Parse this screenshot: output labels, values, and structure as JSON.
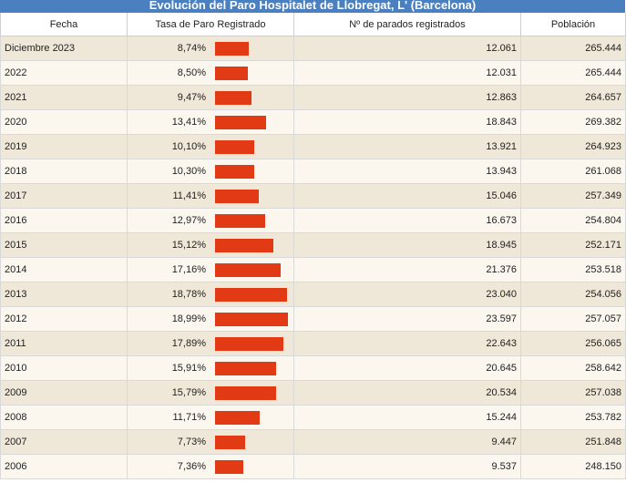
{
  "title": "Evolución del Paro Hospitalet de Llobregat, L' (Barcelona)",
  "columns": {
    "fecha": "Fecha",
    "tasa": "Tasa de Paro Registrado",
    "parados": "Nº de parados registrados",
    "poblacion": "Población"
  },
  "colors": {
    "header": "#4a7fc0",
    "bar": "#e23a14",
    "row_odd": "#efe7d8",
    "row_even": "#fbf7ef"
  },
  "bar_scale_max_percent": 18.99,
  "rows": [
    {
      "fecha": "Diciembre 2023",
      "tasa": "8,74%",
      "tasa_value": 8.74,
      "parados": "12.061",
      "poblacion": "265.444"
    },
    {
      "fecha": "2022",
      "tasa": "8,50%",
      "tasa_value": 8.5,
      "parados": "12.031",
      "poblacion": "265.444"
    },
    {
      "fecha": "2021",
      "tasa": "9,47%",
      "tasa_value": 9.47,
      "parados": "12.863",
      "poblacion": "264.657"
    },
    {
      "fecha": "2020",
      "tasa": "13,41%",
      "tasa_value": 13.41,
      "parados": "18.843",
      "poblacion": "269.382"
    },
    {
      "fecha": "2019",
      "tasa": "10,10%",
      "tasa_value": 10.1,
      "parados": "13.921",
      "poblacion": "264.923"
    },
    {
      "fecha": "2018",
      "tasa": "10,30%",
      "tasa_value": 10.3,
      "parados": "13.943",
      "poblacion": "261.068"
    },
    {
      "fecha": "2017",
      "tasa": "11,41%",
      "tasa_value": 11.41,
      "parados": "15.046",
      "poblacion": "257.349"
    },
    {
      "fecha": "2016",
      "tasa": "12,97%",
      "tasa_value": 12.97,
      "parados": "16.673",
      "poblacion": "254.804"
    },
    {
      "fecha": "2015",
      "tasa": "15,12%",
      "tasa_value": 15.12,
      "parados": "18.945",
      "poblacion": "252.171"
    },
    {
      "fecha": "2014",
      "tasa": "17,16%",
      "tasa_value": 17.16,
      "parados": "21.376",
      "poblacion": "253.518"
    },
    {
      "fecha": "2013",
      "tasa": "18,78%",
      "tasa_value": 18.78,
      "parados": "23.040",
      "poblacion": "254.056"
    },
    {
      "fecha": "2012",
      "tasa": "18,99%",
      "tasa_value": 18.99,
      "parados": "23.597",
      "poblacion": "257.057"
    },
    {
      "fecha": "2011",
      "tasa": "17,89%",
      "tasa_value": 17.89,
      "parados": "22.643",
      "poblacion": "256.065"
    },
    {
      "fecha": "2010",
      "tasa": "15,91%",
      "tasa_value": 15.91,
      "parados": "20.645",
      "poblacion": "258.642"
    },
    {
      "fecha": "2009",
      "tasa": "15,79%",
      "tasa_value": 15.79,
      "parados": "20.534",
      "poblacion": "257.038"
    },
    {
      "fecha": "2008",
      "tasa": "11,71%",
      "tasa_value": 11.71,
      "parados": "15.244",
      "poblacion": "253.782"
    },
    {
      "fecha": "2007",
      "tasa": "7,73%",
      "tasa_value": 7.73,
      "parados": "9.447",
      "poblacion": "251.848"
    },
    {
      "fecha": "2006",
      "tasa": "7,36%",
      "tasa_value": 7.36,
      "parados": "9.537",
      "poblacion": "248.150"
    }
  ]
}
